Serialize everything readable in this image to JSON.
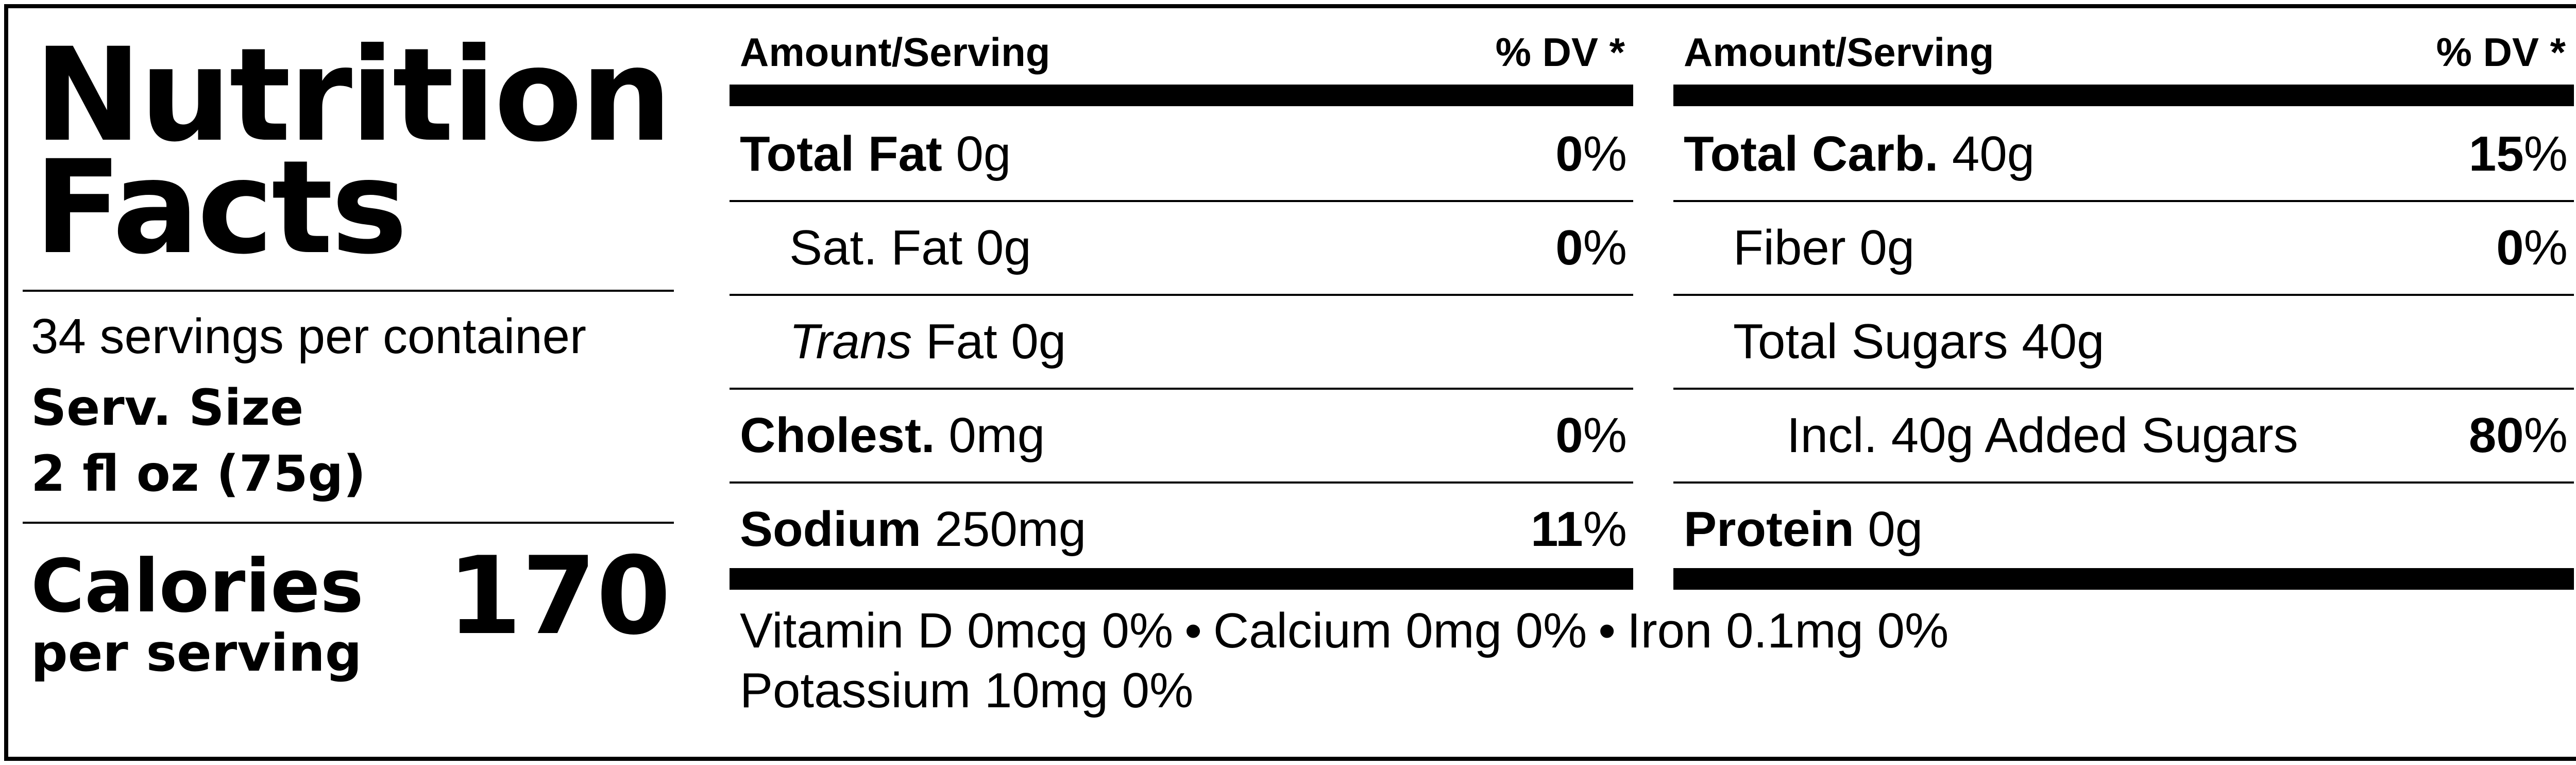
{
  "header": {
    "title_line1": "Nutrition",
    "title_line2": "Facts",
    "servings_per_container": "34 servings per container",
    "serving_size_label": "Serv. Size",
    "serving_size_value": "2 fl oz (75g)",
    "calories_label": "Calories",
    "calories_sublabel": "per serving",
    "calories_value": "170"
  },
  "table": {
    "amount_header": "Amount/Serving",
    "dv_header": "% DV *",
    "left_rows": [
      {
        "name": "Total Fat",
        "amount": "0g",
        "dv_number": "0",
        "dv_unit": "%"
      },
      {
        "name": "Sat. Fat",
        "amount": "0g",
        "dv_number": "0",
        "dv_unit": "%"
      },
      {
        "name_italic": "Trans",
        "name": "Fat",
        "amount": "0g"
      },
      {
        "name": "Cholest.",
        "amount": "0mg",
        "dv_number": "0",
        "dv_unit": "%"
      },
      {
        "name": "Sodium",
        "amount": "250mg",
        "dv_number": "11",
        "dv_unit": "%"
      }
    ],
    "right_rows": [
      {
        "name": "Total Carb.",
        "amount": "40g",
        "dv_number": "15",
        "dv_unit": "%"
      },
      {
        "name": "Fiber",
        "amount": "0g",
        "dv_number": "0",
        "dv_unit": "%"
      },
      {
        "name": "Total Sugars",
        "amount": "40g"
      },
      {
        "name": "Incl. 40g Added Sugars",
        "dv_number": "80",
        "dv_unit": "%"
      },
      {
        "name": "Protein",
        "amount": "0g"
      }
    ]
  },
  "footer": {
    "vitamin_d": "Vitamin D 0mcg 0%",
    "calcium": "Calcium 0mg 0%",
    "iron": "Iron 0.1mg 0%",
    "potassium": "Potassium 10mg 0%",
    "separator": "•"
  }
}
